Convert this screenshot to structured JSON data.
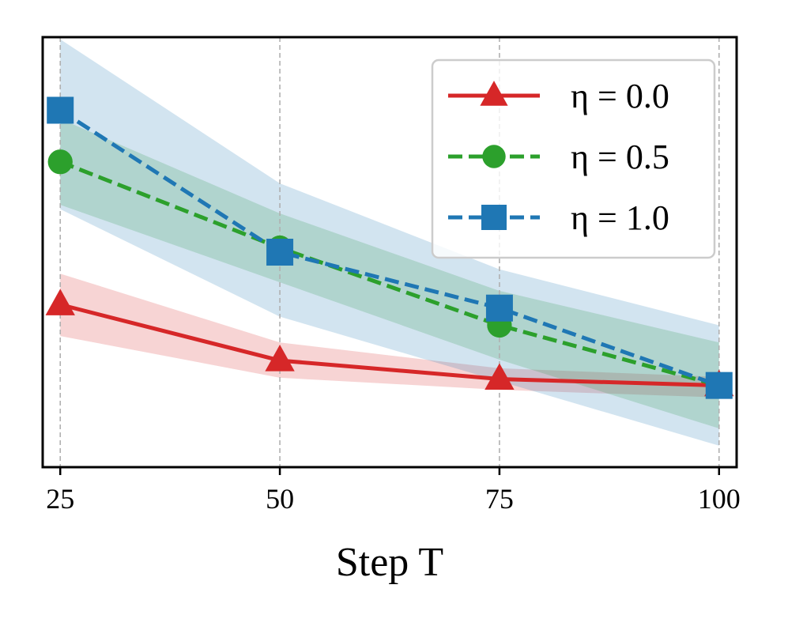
{
  "chart_data": {
    "type": "line",
    "title": "",
    "xlabel": "Step T",
    "ylabel": "",
    "x": [
      25,
      50,
      75,
      100
    ],
    "x_tick_labels": [
      "25",
      "50",
      "75",
      "100"
    ],
    "xlim": [
      23,
      102
    ],
    "ylim": [
      0,
      1
    ],
    "y_ticks_shown": false,
    "grid": "vertical dashed at x ticks",
    "legend_position": "top-right",
    "series": [
      {
        "name": "η = 0.0",
        "color": "#d62728",
        "linestyle": "solid",
        "marker": "triangle",
        "values": [
          0.378,
          0.248,
          0.205,
          0.19
        ],
        "lower": [
          0.305,
          0.208,
          0.18,
          0.162
        ],
        "upper": [
          0.45,
          0.29,
          0.23,
          0.21
        ]
      },
      {
        "name": "η = 0.5",
        "color": "#2ca02c",
        "linestyle": "dashed",
        "marker": "circle",
        "values": [
          0.71,
          0.51,
          0.33,
          0.19
        ],
        "lower": [
          0.61,
          0.43,
          0.25,
          0.09
        ],
        "upper": [
          0.81,
          0.59,
          0.41,
          0.29
        ]
      },
      {
        "name": "η = 1.0",
        "color": "#1f77b4",
        "linestyle": "dashed",
        "marker": "square",
        "values": [
          0.83,
          0.5,
          0.37,
          0.19
        ],
        "lower": [
          0.6,
          0.35,
          0.2,
          0.05
        ],
        "upper": [
          0.995,
          0.66,
          0.46,
          0.33
        ]
      }
    ]
  }
}
